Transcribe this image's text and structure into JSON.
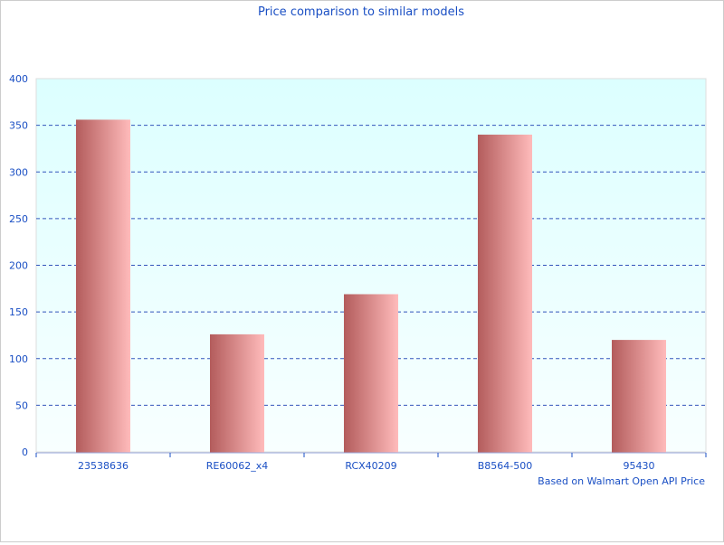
{
  "chart_data": {
    "type": "bar",
    "title": "Price comparison to similar models",
    "xlabel": "Based on Walmart Open API Price",
    "ylabel": "",
    "categories": [
      "23538636",
      "RE60062_x4",
      "RCX40209",
      "B8564-500",
      "95430"
    ],
    "values": [
      356,
      126,
      169,
      340,
      120
    ],
    "ylim": [
      0,
      400
    ],
    "yticks": [
      0,
      50,
      100,
      150,
      200,
      250,
      300,
      350,
      400
    ],
    "grid": true,
    "colors": {
      "bar_dark": "#b35c5c",
      "bar_light": "#ffbbbb",
      "plot_top": "#dcffff",
      "plot_bottom": "#f8ffff",
      "text": "#1a4fc4",
      "grid": "#3355bb"
    }
  }
}
